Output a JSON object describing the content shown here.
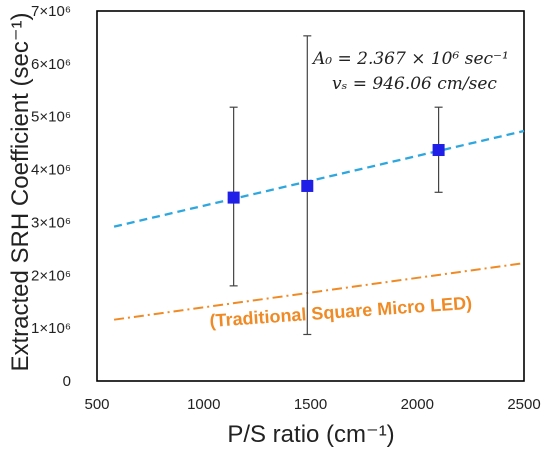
{
  "chart_data": {
    "type": "scatter",
    "xlabel": "P/S ratio (cm⁻¹)",
    "ylabel": "Extracted SRH Coefficient (sec⁻¹)",
    "xlim": [
      500,
      2500
    ],
    "ylim": [
      0,
      7000000
    ],
    "xticks": [
      "500",
      "1000",
      "1500",
      "2000",
      "2500"
    ],
    "yticks": [
      "0",
      "1×10⁶",
      "2×10⁶",
      "3×10⁶",
      "4×10⁶",
      "5×10⁶",
      "6×10⁶",
      "7×10⁶"
    ],
    "grid": false,
    "points": [
      {
        "x": 1140,
        "y": 3470000,
        "err_low": 1800000,
        "err_high": 5180000
      },
      {
        "x": 1485,
        "y": 3690000,
        "err_low": 880000,
        "err_high": 6530000
      },
      {
        "x": 2100,
        "y": 4370000,
        "err_low": 3570000,
        "err_high": 5180000
      }
    ],
    "fit_line": {
      "x": [
        580,
        2500
      ],
      "y": [
        2920000,
        4730000
      ]
    },
    "traditional_line": {
      "x": [
        580,
        2500
      ],
      "y": [
        1160000,
        2230000
      ]
    },
    "annotations": {
      "fit_a0": "A₀ = 2.367 × 10⁶ sec⁻¹",
      "fit_vs": "vₛ = 946.06 cm/sec",
      "traditional": "(Traditional Square Micro LED)"
    },
    "colors": {
      "points": "#1f1fe8",
      "fit_line": "#2ea7de",
      "traditional_line": "#f08a24",
      "error_bars": "#444444",
      "frame": "#000000"
    }
  }
}
